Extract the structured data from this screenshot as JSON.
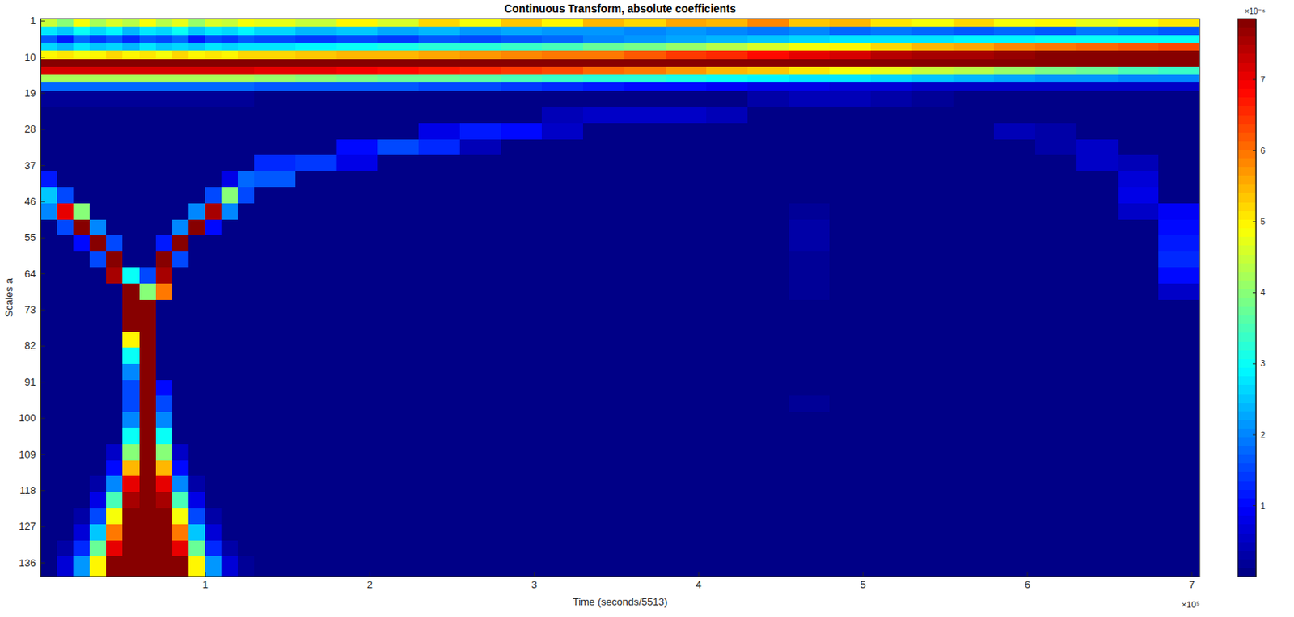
{
  "chart_data": {
    "type": "heatmap",
    "title": "Continuous Transform, absolute coefficients",
    "xlabel": "Time (seconds/5513)",
    "ylabel": "Scales a",
    "x_scale_label": "×10⁵",
    "xlim": [
      0,
      7.05
    ],
    "ylim": [
      0.5,
      139.5
    ],
    "xticks": [
      1,
      2,
      3,
      4,
      5,
      6,
      7
    ],
    "yticks": [
      1,
      10,
      19,
      28,
      37,
      46,
      55,
      64,
      73,
      82,
      91,
      100,
      109,
      118,
      127,
      136
    ],
    "x_edges": [
      0,
      0.1,
      0.2,
      0.3,
      0.4,
      0.5,
      0.6,
      0.7,
      0.8,
      0.9,
      1,
      1.1,
      1.2,
      1.3,
      1.55,
      1.8,
      2.05,
      2.3,
      2.55,
      2.8,
      3.05,
      3.3,
      3.55,
      3.8,
      4.05,
      4.3,
      4.55,
      4.8,
      5.05,
      5.3,
      5.55,
      5.8,
      6.05,
      6.3,
      6.55,
      6.8,
      7.05
    ],
    "y_edges": [
      0.5,
      2.5,
      4.5,
      6.5,
      8.5,
      10.5,
      12.5,
      14.5,
      16.5,
      18.5,
      22.5,
      26.5,
      30.5,
      34.5,
      38.5,
      42.5,
      46.5,
      50.5,
      54.5,
      58.5,
      62.5,
      66.5,
      70.5,
      74.5,
      78.5,
      82.5,
      86.5,
      90.5,
      94.5,
      98.5,
      102.5,
      106.5,
      110.5,
      114.5,
      118.5,
      122.5,
      126.5,
      130.5,
      134.5,
      139.5
    ],
    "z": [
      [
        4.5,
        4,
        4.8,
        4.2,
        4.6,
        4.3,
        4.9,
        4.4,
        4.7,
        4.1,
        4.6,
        4.5,
        4.8,
        4.7,
        4.5,
        5,
        4.6,
        5.2,
        4.8,
        5.3,
        5,
        5.5,
        5.2,
        5.6,
        5.4,
        5.8,
        5.3,
        5.5,
        5.1,
        4.9,
        5.2,
        4.8,
        5,
        4.7,
        4.9,
        5.1
      ],
      [
        2.8,
        2.5,
        3,
        2.6,
        2.9,
        2.4,
        2.8,
        2.6,
        3,
        2.5,
        2.7,
        2.6,
        2.9,
        2.6,
        2.4,
        2.5,
        2.3,
        2.4,
        2.2,
        2.3,
        2.1,
        2.2,
        2,
        2.1,
        2,
        1.9,
        2,
        1.8,
        1.9,
        1.8,
        1.7,
        1.8,
        1.7,
        1.9,
        1.8,
        1.7
      ],
      [
        1.6,
        1.2,
        1.8,
        1.4,
        1.7,
        1.3,
        1.6,
        1.5,
        1.8,
        1.2,
        1.5,
        1.4,
        1.7,
        1.5,
        1.4,
        1.5,
        1.4,
        1.6,
        1.5,
        1.7,
        1.8,
        2,
        2.1,
        2.3,
        2.4,
        2.5,
        2.6,
        2.7,
        2.8,
        2.8,
        2.9,
        2.9,
        3,
        3,
        3,
        3
      ],
      [
        2.6,
        2.4,
        2.7,
        2.5,
        2.6,
        2.4,
        2.7,
        2.5,
        2.6,
        2.5,
        2.7,
        2.6,
        2.8,
        2.8,
        2.9,
        3,
        3.1,
        3.2,
        3.3,
        3.4,
        3.5,
        3.7,
        3.9,
        4.1,
        4.3,
        4.6,
        4.8,
        5,
        5.2,
        5.4,
        5.6,
        5.8,
        6,
        6.1,
        6.2,
        6.3
      ],
      [
        5,
        5.1,
        4.9,
        5,
        5.2,
        5,
        5.1,
        4.9,
        5.2,
        5,
        5.1,
        5,
        5.2,
        5.2,
        5.3,
        5.4,
        5.5,
        5.6,
        5.7,
        5.8,
        5.9,
        6,
        6.2,
        6.4,
        6.6,
        6.8,
        7,
        7.2,
        7.4,
        7.5,
        7.6,
        7.7,
        7.8,
        7.8,
        7.9,
        7.9
      ],
      [
        8,
        8,
        8,
        8,
        8,
        8,
        8,
        8,
        8,
        8,
        8,
        8,
        8,
        8,
        8,
        8,
        8,
        8,
        8,
        8,
        8,
        8,
        8,
        8,
        8,
        8,
        8,
        8,
        8,
        8,
        8,
        8,
        8,
        8,
        8,
        8
      ],
      [
        7.2,
        7.2,
        7.2,
        7.2,
        7.2,
        7.2,
        7.2,
        7.2,
        7.2,
        7.2,
        7.2,
        7.2,
        7.2,
        7.1,
        7,
        6.9,
        6.8,
        6.7,
        6.6,
        6.5,
        6.3,
        6.1,
        5.9,
        5.7,
        5.5,
        5.3,
        5.1,
        4.9,
        4.7,
        4.5,
        4.3,
        4.1,
        3.9,
        3.7,
        3.5,
        3.4
      ],
      [
        4.2,
        4.2,
        4.2,
        4.2,
        4.2,
        4.2,
        4.2,
        4.2,
        4.2,
        4.2,
        4.2,
        4.2,
        4.2,
        4.1,
        4,
        3.9,
        3.8,
        3.7,
        3.6,
        3.5,
        3.4,
        3.3,
        3.2,
        3.1,
        3,
        2.9,
        2.8,
        2.7,
        2.6,
        2.5,
        2.4,
        2.3,
        2.2,
        2.1,
        2,
        2
      ],
      [
        1.8,
        1.8,
        1.8,
        1.8,
        1.8,
        1.8,
        1.8,
        1.8,
        1.8,
        1.8,
        1.8,
        1.8,
        1.8,
        1.7,
        1.7,
        1.6,
        1.6,
        1.5,
        1.5,
        1.4,
        1.3,
        1.2,
        1.1,
        1,
        0.9,
        0.8,
        0.8,
        0.7,
        0.7,
        0.6,
        0.6,
        0.5,
        0.5,
        0.5,
        0.5,
        0.5
      ],
      [
        0.2,
        0.2,
        0.2,
        0.2,
        0.2,
        0.2,
        0.2,
        0.2,
        0.2,
        0.2,
        0.2,
        0.2,
        0.2,
        0.1,
        0.1,
        0.1,
        0.1,
        0.1,
        0.1,
        0.1,
        0.1,
        0.1,
        0.1,
        0.1,
        0.1,
        0.3,
        0.4,
        0.4,
        0.3,
        0.2,
        0,
        0,
        0,
        0,
        0,
        0
      ],
      [
        0,
        0,
        0,
        0,
        0,
        0,
        0,
        0,
        0,
        0,
        0,
        0,
        0,
        0,
        0,
        0,
        0,
        0,
        0,
        0,
        0.4,
        0.5,
        0.6,
        0.5,
        0.4,
        0,
        0,
        0,
        0,
        0,
        0,
        0,
        0,
        0,
        0,
        0
      ],
      [
        0,
        0,
        0,
        0,
        0,
        0,
        0,
        0,
        0,
        0,
        0,
        0,
        0,
        0,
        0,
        0,
        0,
        0.8,
        1.2,
        1,
        0.6,
        0,
        0,
        0,
        0,
        0,
        0,
        0,
        0,
        0,
        0,
        0.4,
        0.3,
        0,
        0,
        0
      ],
      [
        0,
        0,
        0,
        0,
        0,
        0,
        0,
        0,
        0,
        0,
        0,
        0,
        0,
        0,
        0,
        1,
        1.5,
        1.3,
        0.4,
        0,
        0,
        0,
        0,
        0,
        0,
        0,
        0,
        0,
        0,
        0,
        0,
        0,
        0.3,
        0.5,
        0,
        0
      ],
      [
        0,
        0,
        0,
        0,
        0,
        0,
        0,
        0,
        0,
        0,
        0,
        0,
        0,
        1.3,
        1.4,
        0.8,
        0,
        0,
        0,
        0,
        0,
        0,
        0,
        0,
        0,
        0,
        0,
        0,
        0,
        0,
        0,
        0,
        0,
        0.5,
        0.4,
        0
      ],
      [
        1.2,
        0,
        0,
        0,
        0,
        0,
        0,
        0,
        0,
        0,
        0,
        0.8,
        1.8,
        1.6,
        0,
        0,
        0,
        0,
        0,
        0,
        0,
        0,
        0,
        0,
        0,
        0,
        0,
        0,
        0,
        0,
        0,
        0,
        0,
        0,
        0.7,
        0
      ],
      [
        2.5,
        1.5,
        0,
        0,
        0,
        0,
        0,
        0,
        0,
        0,
        1.5,
        4,
        1.5,
        0,
        0,
        0,
        0,
        0,
        0,
        0,
        0,
        0,
        0,
        0,
        0,
        0,
        0,
        0,
        0,
        0,
        0,
        0,
        0,
        0,
        0.8,
        0
      ],
      [
        2,
        7,
        4,
        0,
        0,
        0,
        0,
        0,
        0,
        2,
        7.5,
        2,
        0,
        0,
        0,
        0,
        0,
        0,
        0,
        0,
        0,
        0,
        0,
        0,
        0,
        0,
        0.2,
        0,
        0,
        0,
        0,
        0,
        0,
        0,
        0.5,
        0.9
      ],
      [
        0,
        1.5,
        7.8,
        2,
        0,
        0,
        0,
        0,
        2,
        7.8,
        1,
        0,
        0,
        0,
        0,
        0,
        0,
        0,
        0,
        0,
        0,
        0,
        0,
        0,
        0,
        0,
        0.25,
        0,
        0,
        0,
        0,
        0,
        0,
        0,
        0,
        1.1
      ],
      [
        0,
        0,
        1,
        7.8,
        1.5,
        0,
        0,
        1.2,
        7.8,
        0,
        0,
        0,
        0,
        0,
        0,
        0,
        0,
        0,
        0,
        0,
        0,
        0,
        0,
        0,
        0,
        0,
        0.25,
        0,
        0,
        0,
        0,
        0,
        0,
        0,
        0,
        1.2
      ],
      [
        0,
        0,
        0,
        1.5,
        7.8,
        0,
        0,
        7.8,
        1.5,
        0,
        0,
        0,
        0,
        0,
        0,
        0,
        0,
        0,
        0,
        0,
        0,
        0,
        0,
        0,
        0,
        0,
        0.2,
        0,
        0,
        0,
        0,
        0,
        0,
        0,
        0,
        1.3
      ],
      [
        0,
        0,
        0,
        0,
        7.5,
        3,
        1.5,
        7.5,
        0,
        0,
        0,
        0,
        0,
        0,
        0,
        0,
        0,
        0,
        0,
        0,
        0,
        0,
        0,
        0,
        0,
        0,
        0.2,
        0,
        0,
        0,
        0,
        0,
        0,
        0,
        0,
        1
      ],
      [
        0,
        0,
        0,
        0,
        0,
        7.8,
        4,
        6,
        0,
        0,
        0,
        0,
        0,
        0,
        0,
        0,
        0,
        0,
        0,
        0,
        0,
        0,
        0,
        0,
        0,
        0,
        0.15,
        0,
        0,
        0,
        0,
        0,
        0,
        0,
        0,
        0.5
      ],
      [
        0,
        0,
        0,
        0,
        0,
        7.8,
        7.8,
        0,
        0,
        0,
        0,
        0,
        0,
        0,
        0,
        0,
        0,
        0,
        0,
        0,
        0,
        0,
        0,
        0,
        0,
        0,
        0.1,
        0,
        0,
        0,
        0,
        0,
        0,
        0,
        0,
        0
      ],
      [
        0,
        0,
        0,
        0,
        0,
        7.8,
        7.8,
        0,
        0,
        0,
        0,
        0,
        0,
        0,
        0,
        0,
        0,
        0,
        0,
        0,
        0,
        0,
        0,
        0,
        0,
        0,
        0,
        0,
        0,
        0,
        0,
        0,
        0,
        0,
        0,
        0
      ],
      [
        0,
        0,
        0,
        0,
        0,
        5,
        7.8,
        0,
        0,
        0,
        0,
        0,
        0,
        0,
        0,
        0,
        0,
        0,
        0,
        0,
        0,
        0,
        0,
        0,
        0,
        0,
        0,
        0,
        0,
        0,
        0,
        0,
        0,
        0,
        0,
        0
      ],
      [
        0,
        0,
        0,
        0,
        0,
        3,
        7.8,
        0,
        0,
        0,
        0,
        0,
        0,
        0,
        0,
        0,
        0,
        0,
        0,
        0,
        0,
        0,
        0,
        0,
        0,
        0,
        0,
        0,
        0,
        0,
        0,
        0,
        0,
        0,
        0,
        0
      ],
      [
        0,
        0,
        0,
        0,
        0,
        2,
        7.8,
        0,
        0,
        0,
        0,
        0,
        0,
        0,
        0,
        0,
        0,
        0,
        0,
        0,
        0,
        0,
        0,
        0,
        0,
        0,
        0,
        0,
        0,
        0,
        0,
        0,
        0,
        0,
        0,
        0
      ],
      [
        0,
        0,
        0,
        0,
        0,
        1.5,
        7.8,
        1,
        0,
        0,
        0,
        0,
        0,
        0,
        0,
        0,
        0,
        0,
        0,
        0,
        0,
        0,
        0,
        0,
        0,
        0,
        0,
        0,
        0,
        0,
        0,
        0,
        0,
        0,
        0,
        0
      ],
      [
        0,
        0,
        0,
        0,
        0,
        1.5,
        7.8,
        1.5,
        0,
        0,
        0,
        0,
        0,
        0,
        0,
        0,
        0,
        0,
        0,
        0,
        0,
        0,
        0,
        0,
        0,
        0,
        0.2,
        0,
        0,
        0,
        0,
        0,
        0,
        0,
        0,
        0
      ],
      [
        0,
        0,
        0,
        0,
        0,
        2,
        7.8,
        2,
        0,
        0,
        0,
        0,
        0,
        0,
        0,
        0,
        0,
        0,
        0,
        0,
        0,
        0,
        0,
        0,
        0,
        0,
        0,
        0,
        0,
        0,
        0,
        0,
        0,
        0,
        0,
        0
      ],
      [
        0,
        0,
        0,
        0,
        0,
        3,
        7.9,
        3,
        0,
        0,
        0,
        0,
        0,
        0,
        0,
        0,
        0,
        0,
        0,
        0,
        0,
        0,
        0,
        0,
        0,
        0,
        0,
        0,
        0,
        0,
        0,
        0,
        0,
        0,
        0,
        0
      ],
      [
        0,
        0,
        0,
        0,
        0.5,
        4,
        8,
        4,
        0.5,
        0,
        0,
        0,
        0,
        0,
        0,
        0,
        0,
        0,
        0,
        0,
        0,
        0,
        0,
        0,
        0,
        0,
        0,
        0,
        0,
        0,
        0,
        0,
        0,
        0,
        0,
        0
      ],
      [
        0,
        0,
        0,
        0,
        1,
        5.5,
        8,
        5.5,
        1,
        0,
        0,
        0,
        0,
        0,
        0,
        0,
        0,
        0,
        0,
        0,
        0,
        0,
        0,
        0,
        0,
        0,
        0,
        0,
        0,
        0,
        0,
        0,
        0,
        0,
        0,
        0
      ],
      [
        0,
        0,
        0,
        0.3,
        2,
        7,
        8,
        7,
        2,
        0.3,
        0,
        0,
        0,
        0,
        0,
        0,
        0,
        0,
        0,
        0,
        0,
        0,
        0,
        0,
        0,
        0,
        0,
        0,
        0,
        0,
        0,
        0,
        0,
        0,
        0,
        0
      ],
      [
        0,
        0,
        0,
        0.8,
        3.5,
        7.5,
        8,
        7.5,
        3.5,
        0.8,
        0,
        0,
        0,
        0,
        0,
        0,
        0,
        0,
        0,
        0,
        0,
        0,
        0,
        0,
        0,
        0,
        0,
        0,
        0,
        0,
        0,
        0,
        0,
        0,
        0,
        0
      ],
      [
        0,
        0,
        0.3,
        1.5,
        4.8,
        8,
        8,
        8,
        4.8,
        1.5,
        0.3,
        0,
        0,
        0,
        0,
        0,
        0,
        0,
        0,
        0,
        0,
        0,
        0,
        0,
        0,
        0,
        0,
        0,
        0,
        0,
        0,
        0,
        0,
        0,
        0,
        0
      ],
      [
        0,
        0,
        0.7,
        2.5,
        6,
        8,
        8,
        8,
        6,
        2.5,
        0.7,
        0,
        0,
        0,
        0,
        0,
        0,
        0,
        0,
        0,
        0,
        0,
        0,
        0,
        0,
        0,
        0,
        0,
        0,
        0,
        0,
        0,
        0,
        0,
        0,
        0
      ],
      [
        0,
        0.3,
        1.3,
        3.8,
        7,
        8,
        8,
        8,
        7,
        3.8,
        1.3,
        0.3,
        0,
        0,
        0,
        0,
        0,
        0,
        0,
        0,
        0,
        0,
        0,
        0,
        0,
        0,
        0,
        0,
        0,
        0,
        0,
        0,
        0,
        0,
        0,
        0
      ],
      [
        0,
        0.7,
        2.2,
        5,
        7.8,
        8,
        8,
        8,
        7.8,
        5,
        2.2,
        0.7,
        0.2,
        0,
        0,
        0,
        0,
        0,
        0,
        0,
        0,
        0,
        0,
        0,
        0,
        0,
        0,
        0,
        0,
        0,
        0,
        0,
        0,
        0,
        0,
        0
      ]
    ],
    "colorbar": {
      "lim": [
        0,
        7.85
      ],
      "ticks": [
        1,
        2,
        3,
        4,
        5,
        6,
        7
      ],
      "label": "×10⁻⁶"
    }
  }
}
